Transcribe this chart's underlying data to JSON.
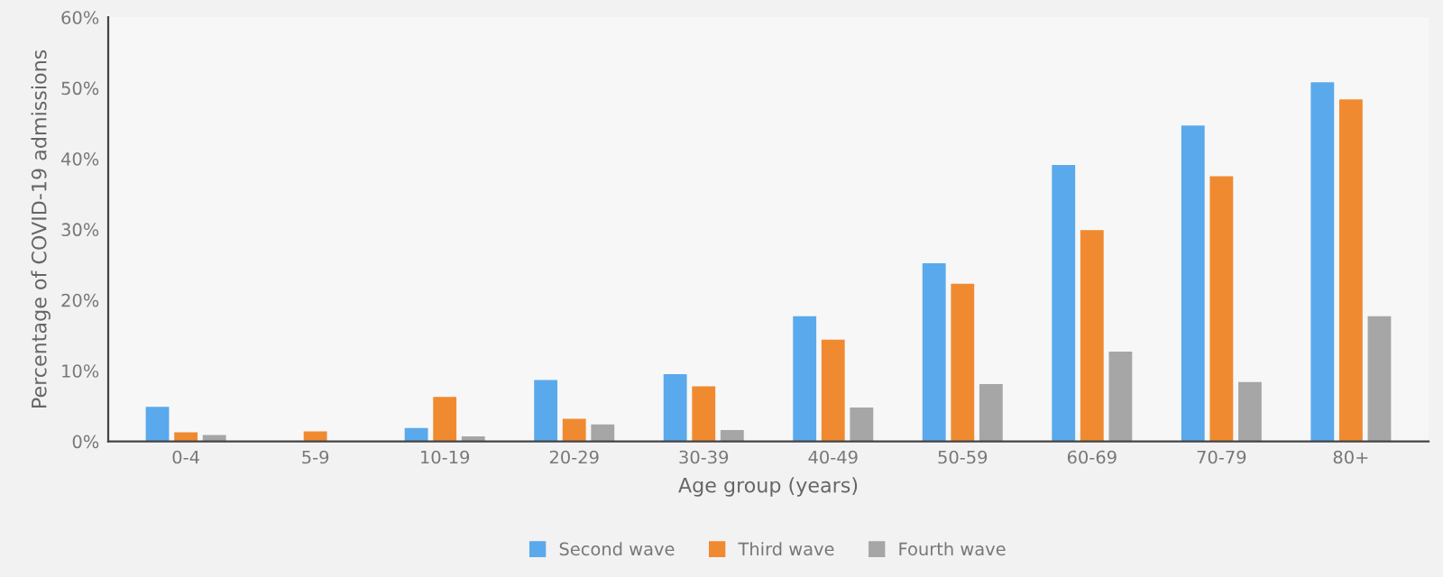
{
  "chart_data": {
    "type": "bar",
    "xlabel": "Age group (years)",
    "ylabel": "Percentage of COVID-19 admissions",
    "categories": [
      "0-4",
      "5-9",
      "10-19",
      "20-29",
      "30-39",
      "40-49",
      "50-59",
      "60-69",
      "70-79",
      "80+"
    ],
    "series": [
      {
        "name": "Second wave",
        "color": "#5aa9ec",
        "values": [
          4.9,
          null,
          1.9,
          8.7,
          9.5,
          17.7,
          25.2,
          39.1,
          44.7,
          50.8
        ]
      },
      {
        "name": "Third wave",
        "color": "#f08a30",
        "values": [
          1.3,
          1.4,
          6.3,
          3.2,
          7.8,
          14.4,
          22.3,
          29.9,
          37.5,
          48.4
        ]
      },
      {
        "name": "Fourth wave",
        "color": "#a6a6a6",
        "values": [
          0.9,
          null,
          0.7,
          2.4,
          1.6,
          4.8,
          8.1,
          12.7,
          8.4,
          17.7
        ]
      }
    ],
    "ylim": [
      0,
      60
    ],
    "yticks": [
      {
        "value": 0,
        "label": "0%"
      },
      {
        "value": 10,
        "label": "10%"
      },
      {
        "value": 20,
        "label": "20%"
      },
      {
        "value": 30,
        "label": "30%"
      },
      {
        "value": 40,
        "label": "40%"
      },
      {
        "value": 50,
        "label": "50%"
      },
      {
        "value": 60,
        "label": "60%"
      }
    ],
    "grid": false,
    "legend": "bottom"
  }
}
